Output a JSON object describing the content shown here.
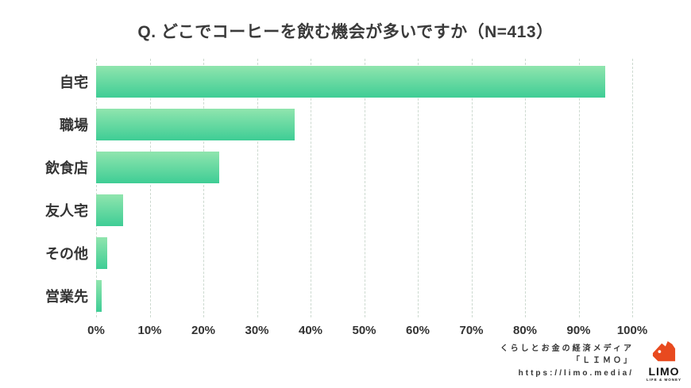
{
  "title": "Q. どこでコーヒーを飲む機会が多いですか（N=413）",
  "chart_data": {
    "type": "bar",
    "orientation": "horizontal",
    "title": "Q. どこでコーヒーを飲む機会が多いですか（N=413）",
    "categories": [
      "自宅",
      "職場",
      "飲食店",
      "友人宅",
      "その他",
      "営業先"
    ],
    "values": [
      95,
      37,
      23,
      5,
      2,
      1
    ],
    "unit": "%",
    "xlim": [
      0,
      100
    ],
    "x_ticks": [
      "0%",
      "10%",
      "20%",
      "30%",
      "40%",
      "50%",
      "60%",
      "70%",
      "80%",
      "90%",
      "100%"
    ],
    "grid": "dashed-vertical",
    "legend": "none",
    "bar_gradient_top": "#90e5ae",
    "bar_gradient_bottom": "#3ecd95"
  },
  "colors": {
    "background": "#ffffff",
    "title_text": "#3b3b3b",
    "label_text": "#333333",
    "gridline": "#ccd9cf",
    "logo_accent": "#e84a1f"
  },
  "footer": {
    "tagline": "くらしとお金の経済メディア",
    "brand": "「ＬＩＭＯ」",
    "url": "https://limo.media/",
    "logo_name": "LIMO",
    "logo_subtext": "LIFE & MONEY"
  }
}
